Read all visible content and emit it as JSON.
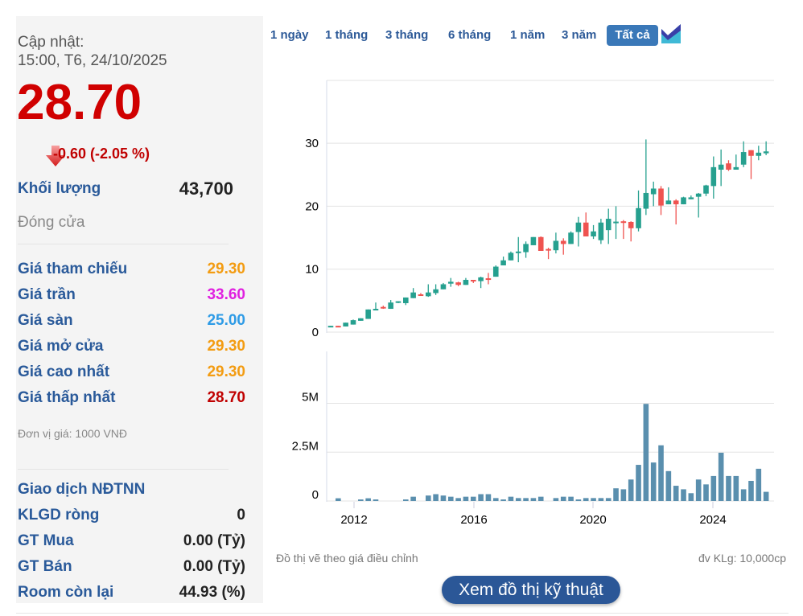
{
  "summary": {
    "updated_label": "Cập nhật:",
    "updated_time": "15:00, T6, 24/10/2025",
    "price": "28.70",
    "change": "-0.60 (-2.05 %)",
    "volume_label": "Khối lượng",
    "volume_value": "43,700",
    "status": "Đóng cửa",
    "rows": [
      {
        "label": "Giá tham chiếu",
        "value": "29.30",
        "color": "#f39c12"
      },
      {
        "label": "Giá trần",
        "value": "33.60",
        "color": "#e020e0"
      },
      {
        "label": "Giá sàn",
        "value": "25.00",
        "color": "#2e9be6"
      },
      {
        "label": "Giá mở cửa",
        "value": "29.30",
        "color": "#f39c12"
      },
      {
        "label": "Giá cao nhất",
        "value": "29.30",
        "color": "#f39c12"
      },
      {
        "label": "Giá thấp nhất",
        "value": "28.70",
        "color": "#c00000"
      }
    ],
    "unit_note": "Đơn vị giá: 1000 VNĐ",
    "foreign_title": "Giao dịch NĐTNN",
    "foreign_rows": [
      {
        "label": "KLGD ròng",
        "value": "0"
      },
      {
        "label": "GT Mua",
        "value": "0.00 (Tỷ)"
      },
      {
        "label": "GT Bán",
        "value": "0.00 (Tỷ)"
      },
      {
        "label": "Room còn lại",
        "value": "44.93 (%)"
      }
    ]
  },
  "ranges": {
    "items": [
      "1 ngày",
      "1 tháng",
      "3 tháng",
      "6 tháng",
      "1 năm",
      "3 năm"
    ],
    "active": "Tất cả"
  },
  "footer": {
    "note": "Đồ thị vẽ theo giá điều chỉnh",
    "unit": "đv KLg: 10,000cp",
    "tech_button": "Xem đồ thị kỹ thuật"
  },
  "colors": {
    "up": "#26a08f",
    "down": "#ef5350",
    "volume": "#5a8fae",
    "accent": "#2b5797"
  },
  "chart_data": {
    "type": "candlestick",
    "price_axis": {
      "ticks": [
        "0",
        "10",
        "20",
        "30"
      ],
      "ylim": [
        0,
        40
      ]
    },
    "volume_axis": {
      "ticks": [
        "0",
        "2.5M",
        "5M"
      ],
      "ylim": [
        0,
        7
      ]
    },
    "x_ticks": [
      "2012",
      "2016",
      "2020",
      "2024"
    ],
    "grid": true,
    "candles_ohlc": [
      [
        0.8,
        1.0,
        0.8,
        1.0
      ],
      [
        1.0,
        1.0,
        0.9,
        0.95
      ],
      [
        0.9,
        1.5,
        0.9,
        1.5
      ],
      [
        1.2,
        2.0,
        1.2,
        1.9
      ],
      [
        1.8,
        2.2,
        1.8,
        2.2
      ],
      [
        2.1,
        3.6,
        2.1,
        3.6
      ],
      [
        3.6,
        4.7,
        3.5,
        3.7
      ],
      [
        4.0,
        4.2,
        3.7,
        3.9
      ],
      [
        3.7,
        5.1,
        3.7,
        4.7
      ],
      [
        4.7,
        4.9,
        4.6,
        4.9
      ],
      [
        4.6,
        5.5,
        4.3,
        5.5
      ],
      [
        5.4,
        7.0,
        5.4,
        6.3
      ],
      [
        6.0,
        6.2,
        5.8,
        5.8
      ],
      [
        5.7,
        7.6,
        5.6,
        6.3
      ],
      [
        6.2,
        7.6,
        5.9,
        6.8
      ],
      [
        6.8,
        7.8,
        6.8,
        7.6
      ],
      [
        7.7,
        8.6,
        7.2,
        8.0
      ],
      [
        7.9,
        8.0,
        7.3,
        7.5
      ],
      [
        7.5,
        8.6,
        7.5,
        8.3
      ],
      [
        8.3,
        8.3,
        7.8,
        8.1
      ],
      [
        8.1,
        8.8,
        7.0,
        8.7
      ],
      [
        8.55,
        9.4,
        7.6,
        8.5
      ],
      [
        8.8,
        10.6,
        8.8,
        10.4
      ],
      [
        10.6,
        12.0,
        10.6,
        11.4
      ],
      [
        11.4,
        12.8,
        11.4,
        12.6
      ],
      [
        12.6,
        15.1,
        11.1,
        12.8
      ],
      [
        12.7,
        14.4,
        11.8,
        14.0
      ],
      [
        13.8,
        15.1,
        13.8,
        15.1
      ],
      [
        15.1,
        15.2,
        12.9,
        12.9
      ],
      [
        13.2,
        13.4,
        11.6,
        13.1
      ],
      [
        13.0,
        15.8,
        12.5,
        14.5
      ],
      [
        14.5,
        14.9,
        12.3,
        14.0
      ],
      [
        14.0,
        16.0,
        14.0,
        15.8
      ],
      [
        15.9,
        18.3,
        13.6,
        17.4
      ],
      [
        17.4,
        19.0,
        15.2,
        15.2
      ],
      [
        15.2,
        17.0,
        14.8,
        16.0
      ],
      [
        14.6,
        18.0,
        14.0,
        17.4
      ],
      [
        16.2,
        19.6,
        14.0,
        18.0
      ],
      [
        17.5,
        20.0,
        14.8,
        17.55
      ],
      [
        17.6,
        17.8,
        14.8,
        17.5
      ],
      [
        17.5,
        17.6,
        14.4,
        16.5
      ],
      [
        16.5,
        22.5,
        16.0,
        19.7
      ],
      [
        19.6,
        30.6,
        18.6,
        22.1
      ],
      [
        21.9,
        23.9,
        20.0,
        22.8
      ],
      [
        22.8,
        23.2,
        18.6,
        20.1
      ],
      [
        20.3,
        23.0,
        20.3,
        20.9
      ],
      [
        20.9,
        21.1,
        17.1,
        20.3
      ],
      [
        20.3,
        21.5,
        20.3,
        21.4
      ],
      [
        21.1,
        21.7,
        21.1,
        21.4
      ],
      [
        21.5,
        22.1,
        18.2,
        22.0
      ],
      [
        22.0,
        23.4,
        21.6,
        23.3
      ],
      [
        23.2,
        27.9,
        21.2,
        26.2
      ],
      [
        25.8,
        29.0,
        23.2,
        26.6
      ],
      [
        26.8,
        27.3,
        25.6,
        25.8
      ],
      [
        25.8,
        28.2,
        25.8,
        26.2
      ],
      [
        26.6,
        30.3,
        26.2,
        28.6
      ],
      [
        28.9,
        28.9,
        24.3,
        28.0
      ],
      [
        28.0,
        29.6,
        27.3,
        28.5
      ],
      [
        28.4,
        30.3,
        28.1,
        28.7
      ]
    ],
    "volume_millions": [
      0,
      0.14,
      0,
      0,
      0.08,
      0.14,
      0.08,
      0,
      0,
      0,
      0.08,
      0.22,
      0,
      0.28,
      0.35,
      0.28,
      0.22,
      0.15,
      0.22,
      0.22,
      0.35,
      0.35,
      0.15,
      0.08,
      0.22,
      0.15,
      0.15,
      0.15,
      0.22,
      0,
      0.15,
      0.22,
      0.22,
      0.08,
      0.15,
      0.15,
      0.15,
      0.15,
      0.65,
      0.6,
      1.1,
      1.85,
      4.97,
      1.97,
      2.85,
      1.53,
      0.78,
      0.6,
      0.4,
      1.1,
      0.85,
      1.28,
      2.47,
      1.28,
      1.28,
      0.6,
      1.03,
      1.65,
      0.47
    ]
  }
}
